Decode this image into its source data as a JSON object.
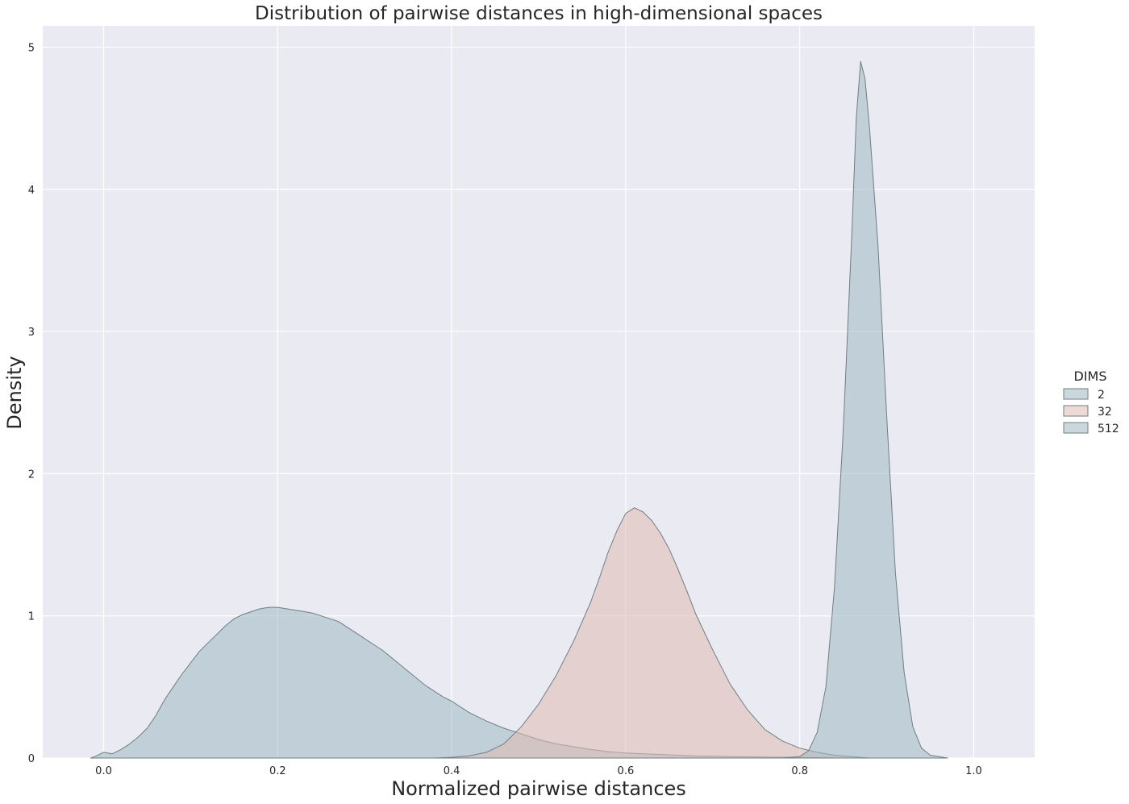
{
  "chart_data": {
    "type": "area",
    "title": "Distribution of pairwise distances in high-dimensional spaces",
    "xlabel": "Normalized pairwise distances",
    "ylabel": "Density",
    "xlim": [
      -0.07,
      1.07
    ],
    "ylim": [
      0,
      5.15
    ],
    "x_ticks": [
      0.0,
      0.2,
      0.4,
      0.6,
      0.8,
      1.0
    ],
    "y_ticks": [
      0,
      1,
      2,
      3,
      4,
      5
    ],
    "grid": true,
    "background": "#eaeaf2",
    "legend": {
      "title": "DIMS",
      "placement": "right"
    },
    "series": [
      {
        "name": "2",
        "color": "#9fb8c3",
        "points": [
          [
            -0.015,
            0.0
          ],
          [
            -0.01,
            0.01
          ],
          [
            -0.005,
            0.025
          ],
          [
            0.0,
            0.04
          ],
          [
            0.01,
            0.03
          ],
          [
            0.02,
            0.06
          ],
          [
            0.03,
            0.1
          ],
          [
            0.04,
            0.15
          ],
          [
            0.05,
            0.21
          ],
          [
            0.06,
            0.3
          ],
          [
            0.07,
            0.41
          ],
          [
            0.08,
            0.5
          ],
          [
            0.09,
            0.59
          ],
          [
            0.1,
            0.67
          ],
          [
            0.11,
            0.75
          ],
          [
            0.12,
            0.81
          ],
          [
            0.13,
            0.87
          ],
          [
            0.14,
            0.93
          ],
          [
            0.15,
            0.98
          ],
          [
            0.16,
            1.01
          ],
          [
            0.17,
            1.03
          ],
          [
            0.18,
            1.05
          ],
          [
            0.19,
            1.06
          ],
          [
            0.2,
            1.06
          ],
          [
            0.21,
            1.05
          ],
          [
            0.22,
            1.04
          ],
          [
            0.23,
            1.03
          ],
          [
            0.24,
            1.02
          ],
          [
            0.25,
            1.0
          ],
          [
            0.26,
            0.98
          ],
          [
            0.27,
            0.96
          ],
          [
            0.28,
            0.92
          ],
          [
            0.29,
            0.88
          ],
          [
            0.3,
            0.84
          ],
          [
            0.31,
            0.8
          ],
          [
            0.32,
            0.76
          ],
          [
            0.33,
            0.71
          ],
          [
            0.34,
            0.66
          ],
          [
            0.35,
            0.61
          ],
          [
            0.36,
            0.56
          ],
          [
            0.37,
            0.51
          ],
          [
            0.38,
            0.47
          ],
          [
            0.39,
            0.43
          ],
          [
            0.4,
            0.4
          ],
          [
            0.42,
            0.32
          ],
          [
            0.44,
            0.26
          ],
          [
            0.46,
            0.21
          ],
          [
            0.48,
            0.17
          ],
          [
            0.5,
            0.13
          ],
          [
            0.52,
            0.1
          ],
          [
            0.54,
            0.08
          ],
          [
            0.56,
            0.06
          ],
          [
            0.58,
            0.045
          ],
          [
            0.6,
            0.035
          ],
          [
            0.64,
            0.025
          ],
          [
            0.68,
            0.015
          ],
          [
            0.72,
            0.01
          ],
          [
            0.76,
            0.007
          ],
          [
            0.8,
            0.004
          ],
          [
            0.85,
            0.0
          ]
        ]
      },
      {
        "name": "32",
        "color": "#dfbcb2",
        "points": [
          [
            0.38,
            0.0
          ],
          [
            0.4,
            0.005
          ],
          [
            0.42,
            0.015
          ],
          [
            0.44,
            0.04
          ],
          [
            0.46,
            0.1
          ],
          [
            0.48,
            0.22
          ],
          [
            0.5,
            0.38
          ],
          [
            0.52,
            0.58
          ],
          [
            0.54,
            0.82
          ],
          [
            0.56,
            1.1
          ],
          [
            0.57,
            1.27
          ],
          [
            0.58,
            1.45
          ],
          [
            0.59,
            1.6
          ],
          [
            0.6,
            1.72
          ],
          [
            0.61,
            1.76
          ],
          [
            0.62,
            1.73
          ],
          [
            0.63,
            1.67
          ],
          [
            0.64,
            1.58
          ],
          [
            0.65,
            1.47
          ],
          [
            0.66,
            1.33
          ],
          [
            0.67,
            1.18
          ],
          [
            0.68,
            1.02
          ],
          [
            0.7,
            0.76
          ],
          [
            0.72,
            0.52
          ],
          [
            0.74,
            0.34
          ],
          [
            0.76,
            0.2
          ],
          [
            0.78,
            0.12
          ],
          [
            0.8,
            0.07
          ],
          [
            0.82,
            0.04
          ],
          [
            0.84,
            0.02
          ],
          [
            0.86,
            0.01
          ],
          [
            0.88,
            0.0
          ]
        ]
      },
      {
        "name": "512",
        "color": "#9fb8c3",
        "points": [
          [
            0.78,
            0.0
          ],
          [
            0.8,
            0.01
          ],
          [
            0.81,
            0.05
          ],
          [
            0.82,
            0.18
          ],
          [
            0.83,
            0.5
          ],
          [
            0.84,
            1.2
          ],
          [
            0.85,
            2.3
          ],
          [
            0.86,
            3.7
          ],
          [
            0.865,
            4.5
          ],
          [
            0.87,
            4.9
          ],
          [
            0.875,
            4.78
          ],
          [
            0.88,
            4.45
          ],
          [
            0.89,
            3.6
          ],
          [
            0.9,
            2.4
          ],
          [
            0.91,
            1.3
          ],
          [
            0.92,
            0.6
          ],
          [
            0.93,
            0.22
          ],
          [
            0.94,
            0.07
          ],
          [
            0.95,
            0.02
          ],
          [
            0.97,
            0.0
          ]
        ]
      }
    ]
  }
}
